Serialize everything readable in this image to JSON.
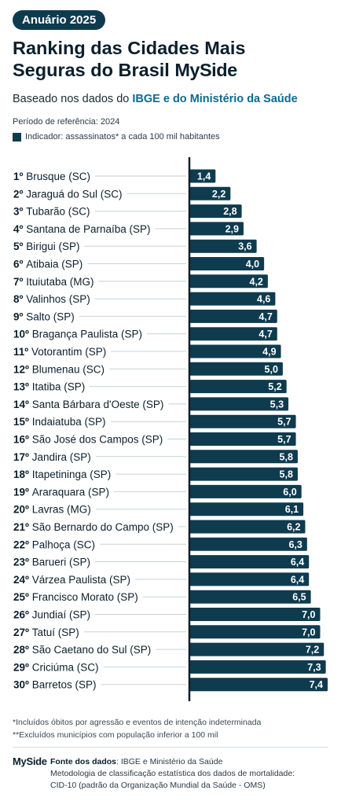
{
  "header": {
    "badge": "Anuário 2025",
    "title_line1": "Ranking das Cidades Mais",
    "title_line2": "Seguras do Brasil",
    "brand": "MySide",
    "subtitle_prefix": "Baseado nos dados do ",
    "subtitle_highlight": "IBGE e do Ministério da Saúde",
    "period": "Período de referência: 2024",
    "indicator": "Indicador: assassinatos* a cada 100 mil habitantes"
  },
  "colors": {
    "bar": "#0f3b4f",
    "label_text": "#ffffff",
    "guide_line": "#c9d1d6",
    "axis": "#0b1f2c"
  },
  "chart_data": {
    "type": "bar",
    "orientation": "horizontal",
    "categories": [
      "1º Brusque (SC)",
      "2º Jaraguá do Sul (SC)",
      "3º Tubarão (SC)",
      "4º Santana de Parnaíba (SP)",
      "5º Birigui (SP)",
      "6º Atibaia (SP)",
      "7º Ituiutaba (MG)",
      "8º Valinhos (SP)",
      "9º Salto (SP)",
      "10º Bragança Paulista (SP)",
      "11º Votorantim (SP)",
      "12º Blumenau (SC)",
      "13º Itatiba (SP)",
      "14º Santa Bárbara d'Oeste (SP)",
      "15º Indaiatuba (SP)",
      "16º São José dos Campos (SP)",
      "17º Jandira (SP)",
      "18º Itapetininga (SP)",
      "19º Araraquara (SP)",
      "20º Lavras (MG)",
      "21º São Bernardo do Campo (SP)",
      "22º Palhoça (SC)",
      "23º Barueri (SP)",
      "24º Várzea Paulista (SP)",
      "25º Francisco Morato (SP)",
      "26º Jundiaí (SP)",
      "27º Tatuí (SP)",
      "28º São Caetano do Sul (SP)",
      "29º Criciúma (SC)",
      "30º Barretos (SP)"
    ],
    "values": [
      1.4,
      2.2,
      2.8,
      2.9,
      3.6,
      4.0,
      4.2,
      4.6,
      4.7,
      4.7,
      4.9,
      5.0,
      5.2,
      5.3,
      5.7,
      5.7,
      5.8,
      5.8,
      6.0,
      6.1,
      6.2,
      6.3,
      6.4,
      6.4,
      6.5,
      7.0,
      7.0,
      7.2,
      7.3,
      7.4
    ],
    "value_labels": [
      "1,4",
      "2,2",
      "2,8",
      "2,9",
      "3,6",
      "4,0",
      "4,2",
      "4,6",
      "4,7",
      "4,7",
      "4,9",
      "5,0",
      "5,2",
      "5,3",
      "5,7",
      "5,7",
      "5,8",
      "5,8",
      "6,0",
      "6,1",
      "6,2",
      "6,3",
      "6,4",
      "6,4",
      "6,5",
      "7,0",
      "7,0",
      "7,2",
      "7,3",
      "7,4"
    ],
    "xlim": [
      0,
      7.4
    ]
  },
  "notes": {
    "line1": "*Incluídos óbitos por agressão e eventos de intenção indeterminada",
    "line2": "**Excluídos municípios com população inferior a 100 mil"
  },
  "footer": {
    "logo": "MySide",
    "source_label": "Fonte dos dados",
    "source_text": ": IBGE e Ministério da Saúde",
    "method_line1": "Metodologia de classificação estatística dos dados de mortalidade:",
    "method_line2": "CID-10 (padrão da Organização Mundial da Saúde - OMS)"
  }
}
